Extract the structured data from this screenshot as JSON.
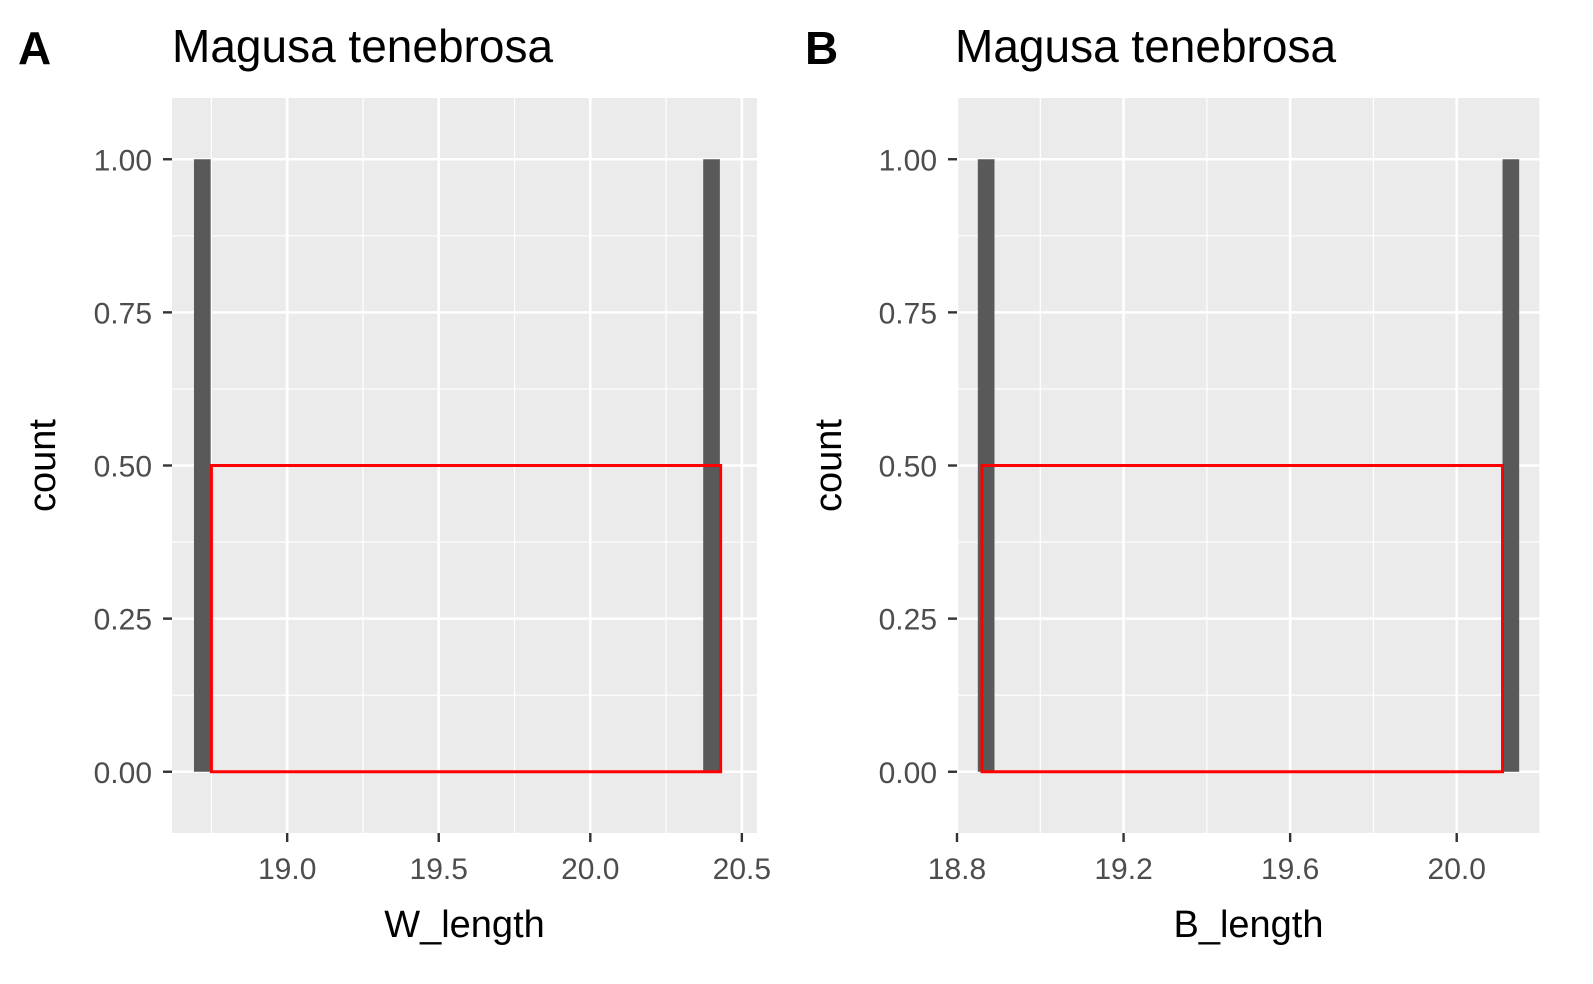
{
  "chart_data": [
    {
      "type": "bar",
      "panel_label": "A",
      "title": "Magusa tenebrosa",
      "xlabel": "W_length",
      "ylabel": "count",
      "xlim": [
        18.62,
        20.55
      ],
      "ylim": [
        -0.1,
        1.1
      ],
      "x_ticks": [
        19.0,
        19.5,
        20.0,
        20.5
      ],
      "x_tick_labels": [
        "19.0",
        "19.5",
        "20.0",
        "20.5"
      ],
      "y_ticks": [
        0,
        0.25,
        0.5,
        0.75,
        1.0
      ],
      "y_tick_labels": [
        "0.00",
        "0.25",
        "0.50",
        "0.75",
        "1.00"
      ],
      "bars": [
        {
          "x": 18.72,
          "count": 1
        },
        {
          "x": 20.4,
          "count": 1
        }
      ],
      "bar_width": 0.055,
      "bar_color": "#595959",
      "highlight_rect": {
        "x": [
          18.75,
          20.43
        ],
        "y": [
          0,
          0.5
        ],
        "color": "#ff0000"
      },
      "panel_background": "#ebebeb",
      "grid": true
    },
    {
      "type": "bar",
      "panel_label": "B",
      "title": "Magusa tenebrosa",
      "xlabel": "B_length",
      "ylabel": "count",
      "xlim": [
        18.8,
        20.2
      ],
      "ylim": [
        -0.1,
        1.1
      ],
      "x_ticks": [
        18.8,
        19.2,
        19.6,
        20.0
      ],
      "x_tick_labels": [
        "18.8",
        "19.2",
        "19.6",
        "20.0"
      ],
      "y_ticks": [
        0,
        0.25,
        0.5,
        0.75,
        1.0
      ],
      "y_tick_labels": [
        "0.00",
        "0.25",
        "0.50",
        "0.75",
        "1.00"
      ],
      "bars": [
        {
          "x": 18.87,
          "count": 1
        },
        {
          "x": 20.13,
          "count": 1
        }
      ],
      "bar_width": 0.04,
      "bar_color": "#595959",
      "highlight_rect": {
        "x": [
          18.86,
          20.11
        ],
        "y": [
          0,
          0.5
        ],
        "color": "#ff0000"
      },
      "panel_background": "#ebebeb",
      "grid": true
    }
  ]
}
